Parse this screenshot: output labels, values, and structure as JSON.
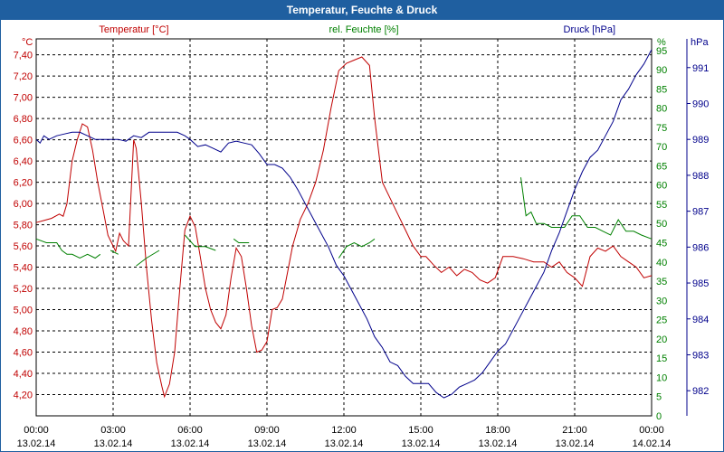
{
  "window": {
    "title": "Temperatur, Feuchte & Druck"
  },
  "chart_data": {
    "type": "line",
    "title": "Temperatur, Feuchte & Druck",
    "x_ticks": [
      {
        "time": "00:00",
        "date": "13.02.14"
      },
      {
        "time": "03:00",
        "date": "13.02.14"
      },
      {
        "time": "06:00",
        "date": "13.02.14"
      },
      {
        "time": "09:00",
        "date": "13.02.14"
      },
      {
        "time": "12:00",
        "date": "13.02.14"
      },
      {
        "time": "15:00",
        "date": "13.02.14"
      },
      {
        "time": "18:00",
        "date": "13.02.14"
      },
      {
        "time": "21:00",
        "date": "13.02.14"
      },
      {
        "time": "00:00",
        "date": "14.02.14"
      }
    ],
    "x_range_hours": [
      0,
      24
    ],
    "grid": true,
    "colors": {
      "temperature": "#c00000",
      "humidity": "#008000",
      "pressure": "#00008b"
    },
    "axes": {
      "temperature": {
        "label": "Temperatur [°C]",
        "unit": "°C",
        "range": [
          4.0,
          7.55
        ],
        "ticks": [
          "4,20",
          "4,40",
          "4,60",
          "4,80",
          "5,00",
          "5,20",
          "5,40",
          "5,60",
          "5,80",
          "6,00",
          "6,20",
          "6,40",
          "6,60",
          "6,80",
          "7,00",
          "7,20",
          "7,40"
        ]
      },
      "humidity": {
        "label": "rel. Feuchte [%]",
        "unit": "%",
        "range": [
          0,
          98
        ],
        "ticks": [
          "0",
          "5",
          "10",
          "15",
          "20",
          "25",
          "30",
          "35",
          "40",
          "45",
          "50",
          "55",
          "60",
          "65",
          "70",
          "75",
          "80",
          "85",
          "90",
          "95"
        ]
      },
      "pressure": {
        "label": "Druck [hPa]",
        "unit": "hPa",
        "range": [
          981.3,
          991.8
        ],
        "ticks": [
          "982",
          "983",
          "984",
          "985",
          "986",
          "987",
          "988",
          "989",
          "990",
          "991"
        ]
      }
    },
    "series": [
      {
        "name": "Temperatur [°C]",
        "axis": "temperature",
        "points": [
          [
            0,
            5.82
          ],
          [
            0.3,
            5.84
          ],
          [
            0.6,
            5.86
          ],
          [
            0.9,
            5.9
          ],
          [
            1.05,
            5.88
          ],
          [
            1.2,
            6.0
          ],
          [
            1.4,
            6.4
          ],
          [
            1.6,
            6.6
          ],
          [
            1.8,
            6.75
          ],
          [
            2.0,
            6.72
          ],
          [
            2.2,
            6.5
          ],
          [
            2.4,
            6.2
          ],
          [
            2.6,
            5.95
          ],
          [
            2.8,
            5.7
          ],
          [
            3.0,
            5.6
          ],
          [
            3.1,
            5.55
          ],
          [
            3.25,
            5.72
          ],
          [
            3.4,
            5.65
          ],
          [
            3.6,
            5.6
          ],
          [
            3.8,
            6.6
          ],
          [
            3.9,
            6.52
          ],
          [
            4.1,
            6.0
          ],
          [
            4.3,
            5.4
          ],
          [
            4.5,
            4.9
          ],
          [
            4.7,
            4.5
          ],
          [
            4.9,
            4.28
          ],
          [
            5.0,
            4.18
          ],
          [
            5.2,
            4.3
          ],
          [
            5.4,
            4.6
          ],
          [
            5.6,
            5.2
          ],
          [
            5.8,
            5.75
          ],
          [
            6.0,
            5.88
          ],
          [
            6.2,
            5.78
          ],
          [
            6.4,
            5.5
          ],
          [
            6.6,
            5.2
          ],
          [
            6.8,
            5.0
          ],
          [
            7.0,
            4.88
          ],
          [
            7.2,
            4.82
          ],
          [
            7.4,
            4.95
          ],
          [
            7.6,
            5.3
          ],
          [
            7.8,
            5.58
          ],
          [
            8.0,
            5.5
          ],
          [
            8.2,
            5.2
          ],
          [
            8.4,
            4.85
          ],
          [
            8.6,
            4.6
          ],
          [
            8.8,
            4.62
          ],
          [
            9.0,
            4.7
          ],
          [
            9.2,
            5.0
          ],
          [
            9.4,
            5.02
          ],
          [
            9.6,
            5.1
          ],
          [
            9.8,
            5.35
          ],
          [
            10.0,
            5.6
          ],
          [
            10.3,
            5.85
          ],
          [
            10.6,
            6.0
          ],
          [
            10.9,
            6.2
          ],
          [
            11.2,
            6.5
          ],
          [
            11.5,
            6.9
          ],
          [
            11.8,
            7.25
          ],
          [
            12.1,
            7.32
          ],
          [
            12.4,
            7.35
          ],
          [
            12.7,
            7.38
          ],
          [
            13.0,
            7.3
          ],
          [
            13.2,
            6.8
          ],
          [
            13.5,
            6.2
          ],
          [
            13.8,
            6.05
          ],
          [
            14.1,
            5.9
          ],
          [
            14.4,
            5.75
          ],
          [
            14.7,
            5.6
          ],
          [
            15.0,
            5.5
          ],
          [
            15.2,
            5.5
          ],
          [
            15.5,
            5.42
          ],
          [
            15.8,
            5.35
          ],
          [
            16.1,
            5.4
          ],
          [
            16.4,
            5.32
          ],
          [
            16.7,
            5.38
          ],
          [
            17.0,
            5.35
          ],
          [
            17.3,
            5.28
          ],
          [
            17.6,
            5.25
          ],
          [
            17.9,
            5.3
          ],
          [
            18.2,
            5.5
          ],
          [
            18.6,
            5.5
          ],
          [
            19.0,
            5.48
          ],
          [
            19.4,
            5.45
          ],
          [
            19.8,
            5.45
          ],
          [
            20.1,
            5.4
          ],
          [
            20.4,
            5.45
          ],
          [
            20.7,
            5.35
          ],
          [
            21.0,
            5.3
          ],
          [
            21.3,
            5.22
          ],
          [
            21.6,
            5.5
          ],
          [
            21.9,
            5.58
          ],
          [
            22.2,
            5.55
          ],
          [
            22.5,
            5.6
          ],
          [
            22.8,
            5.5
          ],
          [
            23.1,
            5.45
          ],
          [
            23.4,
            5.4
          ],
          [
            23.7,
            5.3
          ],
          [
            24.0,
            5.32
          ]
        ]
      },
      {
        "name": "rel. Feuchte [%]",
        "axis": "humidity",
        "segments": [
          [
            [
              0,
              46
            ],
            [
              0.4,
              45
            ],
            [
              0.8,
              45
            ],
            [
              1.0,
              43
            ],
            [
              1.2,
              42
            ],
            [
              1.4,
              42
            ],
            [
              1.7,
              41
            ],
            [
              2.0,
              42
            ],
            [
              2.3,
              41
            ],
            [
              2.5,
              42
            ]
          ],
          [
            [
              2.9,
              43
            ],
            [
              3.2,
              42
            ]
          ],
          [
            [
              3.9,
              39
            ],
            [
              4.3,
              41
            ],
            [
              4.8,
              43
            ]
          ],
          [
            [
              5.8,
              47
            ],
            [
              6.2,
              44
            ],
            [
              6.6,
              44
            ],
            [
              7.0,
              43
            ]
          ],
          [
            [
              7.7,
              46
            ],
            [
              7.9,
              45
            ],
            [
              8.3,
              45
            ]
          ],
          [
            [
              11.8,
              41
            ],
            [
              12.1,
              44
            ],
            [
              12.4,
              45
            ],
            [
              12.7,
              44
            ],
            [
              13.0,
              45
            ],
            [
              13.2,
              46
            ]
          ],
          [
            [
              18.9,
              62
            ],
            [
              19.1,
              52
            ],
            [
              19.3,
              53
            ],
            [
              19.5,
              50
            ],
            [
              19.8,
              50
            ],
            [
              20.1,
              49
            ],
            [
              20.3,
              49
            ],
            [
              20.6,
              49
            ],
            [
              20.9,
              52
            ],
            [
              21.2,
              52
            ],
            [
              21.5,
              49
            ],
            [
              21.8,
              49
            ],
            [
              22.1,
              48
            ],
            [
              22.4,
              47
            ],
            [
              22.7,
              51
            ],
            [
              23.0,
              48
            ],
            [
              23.3,
              48
            ],
            [
              23.6,
              47
            ],
            [
              24.0,
              46
            ]
          ]
        ]
      },
      {
        "name": "Druck [hPa]",
        "axis": "pressure",
        "points": [
          [
            0,
            989.0
          ],
          [
            0.15,
            988.9
          ],
          [
            0.3,
            989.1
          ],
          [
            0.5,
            989.0
          ],
          [
            0.8,
            989.1
          ],
          [
            1.1,
            989.15
          ],
          [
            1.4,
            989.2
          ],
          [
            1.7,
            989.2
          ],
          [
            2.0,
            989.1
          ],
          [
            2.3,
            989.0
          ],
          [
            2.6,
            989.0
          ],
          [
            2.9,
            989.0
          ],
          [
            3.2,
            989.0
          ],
          [
            3.5,
            988.95
          ],
          [
            3.8,
            989.1
          ],
          [
            4.1,
            989.05
          ],
          [
            4.4,
            989.2
          ],
          [
            4.8,
            989.2
          ],
          [
            5.2,
            989.2
          ],
          [
            5.5,
            989.2
          ],
          [
            5.8,
            989.1
          ],
          [
            6.0,
            989.0
          ],
          [
            6.3,
            988.8
          ],
          [
            6.6,
            988.85
          ],
          [
            6.9,
            988.75
          ],
          [
            7.2,
            988.65
          ],
          [
            7.5,
            988.9
          ],
          [
            7.8,
            988.95
          ],
          [
            8.1,
            988.9
          ],
          [
            8.4,
            988.85
          ],
          [
            8.7,
            988.6
          ],
          [
            9.0,
            988.3
          ],
          [
            9.3,
            988.3
          ],
          [
            9.6,
            988.2
          ],
          [
            9.9,
            987.95
          ],
          [
            10.2,
            987.6
          ],
          [
            10.5,
            987.2
          ],
          [
            10.8,
            986.8
          ],
          [
            11.1,
            986.4
          ],
          [
            11.4,
            986.0
          ],
          [
            11.7,
            985.5
          ],
          [
            12.0,
            985.2
          ],
          [
            12.3,
            984.8
          ],
          [
            12.6,
            984.4
          ],
          [
            12.9,
            984.0
          ],
          [
            13.2,
            983.5
          ],
          [
            13.5,
            983.2
          ],
          [
            13.8,
            982.8
          ],
          [
            14.1,
            982.7
          ],
          [
            14.4,
            982.4
          ],
          [
            14.7,
            982.2
          ],
          [
            15.0,
            982.2
          ],
          [
            15.3,
            982.2
          ],
          [
            15.6,
            981.95
          ],
          [
            15.9,
            981.8
          ],
          [
            16.2,
            981.9
          ],
          [
            16.5,
            982.1
          ],
          [
            16.8,
            982.2
          ],
          [
            17.1,
            982.3
          ],
          [
            17.4,
            982.5
          ],
          [
            17.7,
            982.8
          ],
          [
            18.0,
            983.1
          ],
          [
            18.3,
            983.3
          ],
          [
            18.6,
            983.7
          ],
          [
            18.9,
            984.1
          ],
          [
            19.2,
            984.5
          ],
          [
            19.5,
            984.9
          ],
          [
            19.8,
            985.3
          ],
          [
            20.1,
            985.9
          ],
          [
            20.4,
            986.4
          ],
          [
            20.7,
            987.0
          ],
          [
            21.0,
            987.6
          ],
          [
            21.3,
            988.1
          ],
          [
            21.6,
            988.5
          ],
          [
            21.9,
            988.7
          ],
          [
            22.2,
            989.1
          ],
          [
            22.5,
            989.5
          ],
          [
            22.8,
            990.1
          ],
          [
            23.1,
            990.4
          ],
          [
            23.4,
            990.8
          ],
          [
            23.7,
            991.1
          ],
          [
            24.0,
            991.5
          ]
        ]
      }
    ]
  }
}
